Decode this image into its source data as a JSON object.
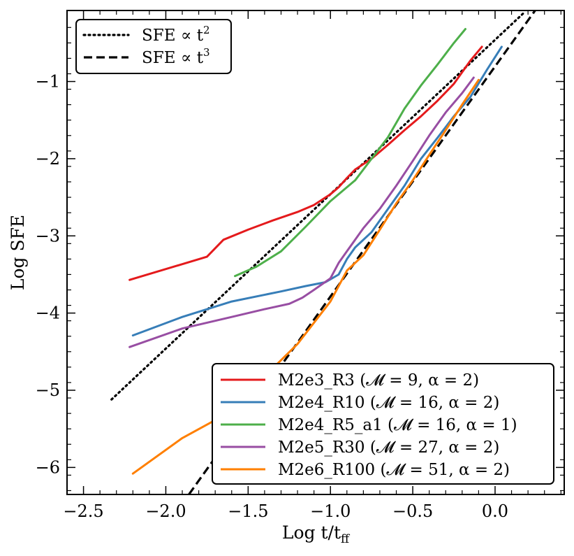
{
  "chart_data": {
    "type": "line",
    "title": "",
    "xlabel": "Log t/t",
    "xlabel_sub": "ff",
    "ylabel": "Log SFE",
    "xlim": [
      -2.6,
      0.42
    ],
    "ylim": [
      -6.35,
      -0.08
    ],
    "xticks": [
      -2.5,
      -2.0,
      -1.5,
      -1.0,
      -0.5,
      0.0
    ],
    "xtick_labels": [
      "−2.5",
      "−2.0",
      "−1.5",
      "−1.0",
      "−0.5",
      "0.0"
    ],
    "yticks": [
      -6,
      -5,
      -4,
      -3,
      -2,
      -1
    ],
    "ytick_labels": [
      "−6",
      "−5",
      "−4",
      "−3",
      "−2",
      "−1"
    ],
    "reference_lines": [
      {
        "name": "SFE ∝ t²",
        "label_main": "SFE ∝ t",
        "label_exp": "2",
        "style": "dotted",
        "color": "#000000",
        "x": [
          -2.33,
          0.18
        ],
        "y": [
          -5.12,
          -0.1
        ]
      },
      {
        "name": "SFE ∝ t³",
        "label_main": "SFE ∝ t",
        "label_exp": "3",
        "style": "dashed",
        "color": "#000000",
        "x": [
          -1.86,
          0.27
        ],
        "y": [
          -6.35,
          -0.0
        ]
      }
    ],
    "series": [
      {
        "name": "M2e3_R3",
        "label": "M2e3_R3 (𝓜 = 9, α = 2)",
        "color": "#e41a1c",
        "x": [
          -2.22,
          -1.75,
          -1.65,
          -1.5,
          -1.35,
          -1.2,
          -1.1,
          -1.0,
          -0.95,
          -0.9,
          -0.85,
          -0.75,
          -0.65,
          -0.55,
          -0.45,
          -0.35,
          -0.25,
          -0.15,
          -0.08
        ],
        "y": [
          -3.57,
          -3.27,
          -3.05,
          -2.92,
          -2.8,
          -2.69,
          -2.6,
          -2.46,
          -2.37,
          -2.25,
          -2.14,
          -2.0,
          -1.82,
          -1.63,
          -1.45,
          -1.25,
          -1.03,
          -0.73,
          -0.55
        ]
      },
      {
        "name": "M2e4_R10",
        "label": "M2e4_R10 (𝓜 = 16, α = 2)",
        "color": "#377eb8",
        "x": [
          -2.2,
          -1.9,
          -1.6,
          -1.3,
          -1.15,
          -1.03,
          -0.95,
          -0.9,
          -0.85,
          -0.75,
          -0.65,
          -0.55,
          -0.45,
          -0.35,
          -0.25,
          -0.15,
          -0.05,
          0.04
        ],
        "y": [
          -4.29,
          -4.05,
          -3.85,
          -3.72,
          -3.65,
          -3.6,
          -3.5,
          -3.3,
          -3.15,
          -2.95,
          -2.65,
          -2.35,
          -2.0,
          -1.73,
          -1.45,
          -1.2,
          -0.85,
          -0.55
        ]
      },
      {
        "name": "M2e4_R5_a1",
        "label": "M2e4_R5_a1 (𝓜 = 16, α = 1)",
        "color": "#4daf4a",
        "x": [
          -1.58,
          -1.45,
          -1.3,
          -1.15,
          -1.0,
          -0.85,
          -0.75,
          -0.65,
          -0.55,
          -0.45,
          -0.35,
          -0.25,
          -0.18
        ],
        "y": [
          -3.52,
          -3.4,
          -3.2,
          -2.88,
          -2.55,
          -2.28,
          -2.0,
          -1.72,
          -1.35,
          -1.05,
          -0.78,
          -0.5,
          -0.32
        ]
      },
      {
        "name": "M2e5_R30",
        "label": "M2e5_R30 (𝓜 = 27, α = 2)",
        "color": "#984ea3",
        "x": [
          -2.22,
          -1.9,
          -1.6,
          -1.4,
          -1.25,
          -1.17,
          -1.1,
          -1.0,
          -0.95,
          -0.9,
          -0.85,
          -0.8,
          -0.7,
          -0.6,
          -0.5,
          -0.4,
          -0.3,
          -0.2,
          -0.13
        ],
        "y": [
          -4.44,
          -4.2,
          -4.05,
          -3.95,
          -3.88,
          -3.8,
          -3.7,
          -3.55,
          -3.35,
          -3.2,
          -3.05,
          -2.9,
          -2.65,
          -2.35,
          -2.03,
          -1.7,
          -1.4,
          -1.15,
          -0.95
        ]
      },
      {
        "name": "M2e6_R100",
        "label": "M2e6_R100 (𝓜 = 51, α = 2)",
        "color": "#ff7f00",
        "x": [
          -2.2,
          -1.9,
          -1.6,
          -1.4,
          -1.2,
          -1.0,
          -0.9,
          -0.8,
          -0.7,
          -0.6,
          -0.5,
          -0.4,
          -0.3,
          -0.2,
          -0.1
        ],
        "y": [
          -6.08,
          -5.62,
          -5.27,
          -4.82,
          -4.4,
          -3.85,
          -3.45,
          -3.25,
          -2.92,
          -2.58,
          -2.28,
          -1.95,
          -1.63,
          -1.3,
          -0.98
        ]
      }
    ],
    "legends": [
      {
        "placement": "top-left",
        "entries": [
          "SFE ∝ t²",
          "SFE ∝ t³"
        ]
      },
      {
        "placement": "bottom-right",
        "entries": [
          "M2e3_R3",
          "M2e4_R10",
          "M2e4_R5_a1",
          "M2e5_R30",
          "M2e6_R100"
        ]
      }
    ]
  }
}
